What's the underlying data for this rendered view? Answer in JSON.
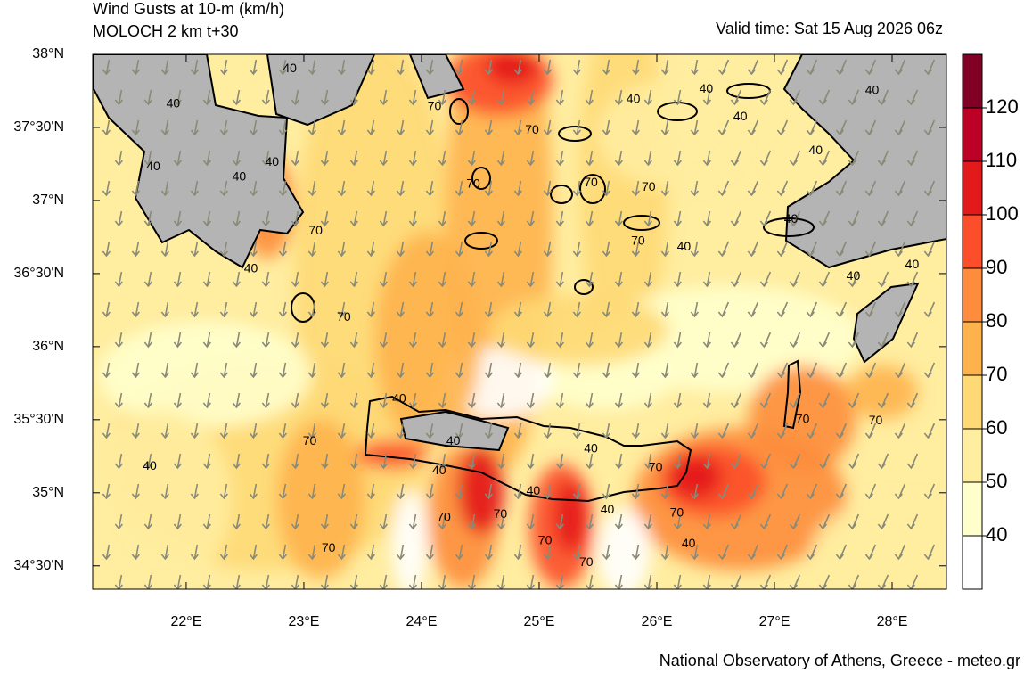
{
  "header": {
    "title": "Wind Gusts at 10-m (km/h)",
    "subtitle": "MOLOCH 2 km t+30",
    "valid_time": "Valid time: Sat 15 Aug 2026 06z"
  },
  "map": {
    "lonlim": [
      21.205,
      28.462
    ],
    "latlim": [
      34.34,
      38.0
    ],
    "lonticks": [
      {
        "value": 22,
        "label": "22°E"
      },
      {
        "value": 23,
        "label": "23°E"
      },
      {
        "value": 24,
        "label": "24°E"
      },
      {
        "value": 25,
        "label": "25°E"
      },
      {
        "value": 26,
        "label": "26°E"
      },
      {
        "value": 27,
        "label": "27°E"
      },
      {
        "value": 28,
        "label": "28°E"
      }
    ],
    "latticks": [
      {
        "value": 38,
        "label": "38°N"
      },
      {
        "value": 37.5,
        "label": "37°30'N"
      },
      {
        "value": 37,
        "label": "37°N"
      },
      {
        "value": 36.5,
        "label": "36°30'N"
      },
      {
        "value": 36,
        "label": "36°N"
      },
      {
        "value": 35.5,
        "label": "35°30'N"
      },
      {
        "value": 35,
        "label": "35°N"
      },
      {
        "value": 34.5,
        "label": "34°30'N"
      }
    ],
    "contour_labels": [
      {
        "lon": 22.88,
        "lat": 37.9,
        "value": 40
      },
      {
        "lon": 21.89,
        "lat": 37.66,
        "value": 40
      },
      {
        "lon": 24.11,
        "lat": 37.64,
        "value": 70
      },
      {
        "lon": 25.8,
        "lat": 37.69,
        "value": 40
      },
      {
        "lon": 26.42,
        "lat": 37.76,
        "value": 40
      },
      {
        "lon": 26.71,
        "lat": 37.57,
        "value": 40
      },
      {
        "lon": 27.83,
        "lat": 37.75,
        "value": 40
      },
      {
        "lon": 21.72,
        "lat": 37.23,
        "value": 40
      },
      {
        "lon": 22.73,
        "lat": 37.26,
        "value": 40
      },
      {
        "lon": 24.94,
        "lat": 37.48,
        "value": 70
      },
      {
        "lon": 27.35,
        "lat": 37.34,
        "value": 40
      },
      {
        "lon": 22.45,
        "lat": 37.16,
        "value": 40
      },
      {
        "lon": 24.44,
        "lat": 37.11,
        "value": 70
      },
      {
        "lon": 25.44,
        "lat": 37.12,
        "value": 70
      },
      {
        "lon": 25.93,
        "lat": 37.09,
        "value": 70
      },
      {
        "lon": 27.14,
        "lat": 36.87,
        "value": 40
      },
      {
        "lon": 23.1,
        "lat": 36.79,
        "value": 70
      },
      {
        "lon": 25.84,
        "lat": 36.72,
        "value": 70
      },
      {
        "lon": 26.23,
        "lat": 36.68,
        "value": 40
      },
      {
        "lon": 22.55,
        "lat": 36.53,
        "value": 40
      },
      {
        "lon": 28.17,
        "lat": 36.56,
        "value": 40
      },
      {
        "lon": 27.67,
        "lat": 36.48,
        "value": 40
      },
      {
        "lon": 23.34,
        "lat": 36.2,
        "value": 70
      },
      {
        "lon": 23.81,
        "lat": 35.64,
        "value": 40
      },
      {
        "lon": 23.05,
        "lat": 35.35,
        "value": 70
      },
      {
        "lon": 24.27,
        "lat": 35.35,
        "value": 40
      },
      {
        "lon": 27.24,
        "lat": 35.5,
        "value": 70
      },
      {
        "lon": 27.86,
        "lat": 35.49,
        "value": 70
      },
      {
        "lon": 21.69,
        "lat": 35.18,
        "value": 40
      },
      {
        "lon": 24.15,
        "lat": 35.15,
        "value": 40
      },
      {
        "lon": 25.44,
        "lat": 35.3,
        "value": 40
      },
      {
        "lon": 25.99,
        "lat": 35.17,
        "value": 70
      },
      {
        "lon": 24.95,
        "lat": 35.01,
        "value": 40
      },
      {
        "lon": 24.19,
        "lat": 34.83,
        "value": 70
      },
      {
        "lon": 24.67,
        "lat": 34.85,
        "value": 70
      },
      {
        "lon": 25.58,
        "lat": 34.88,
        "value": 40
      },
      {
        "lon": 26.17,
        "lat": 34.86,
        "value": 70
      },
      {
        "lon": 25.05,
        "lat": 34.67,
        "value": 70
      },
      {
        "lon": 26.27,
        "lat": 34.65,
        "value": 40
      },
      {
        "lon": 23.21,
        "lat": 34.62,
        "value": 70
      },
      {
        "lon": 25.4,
        "lat": 34.52,
        "value": 70
      }
    ]
  },
  "colorbar": {
    "ylim": [
      30,
      130
    ],
    "yticks": [
      40,
      50,
      60,
      70,
      80,
      90,
      100,
      110,
      120
    ],
    "colors": [
      "#ffffff",
      "#ffffcc",
      "#ffeda0",
      "#fed976",
      "#feb24c",
      "#fd8d3c",
      "#fc4e2a",
      "#e31a1c",
      "#bd0026",
      "#800026"
    ]
  },
  "footer": {
    "credit": "National Observatory of Athens, Greece - meteo.gr"
  }
}
